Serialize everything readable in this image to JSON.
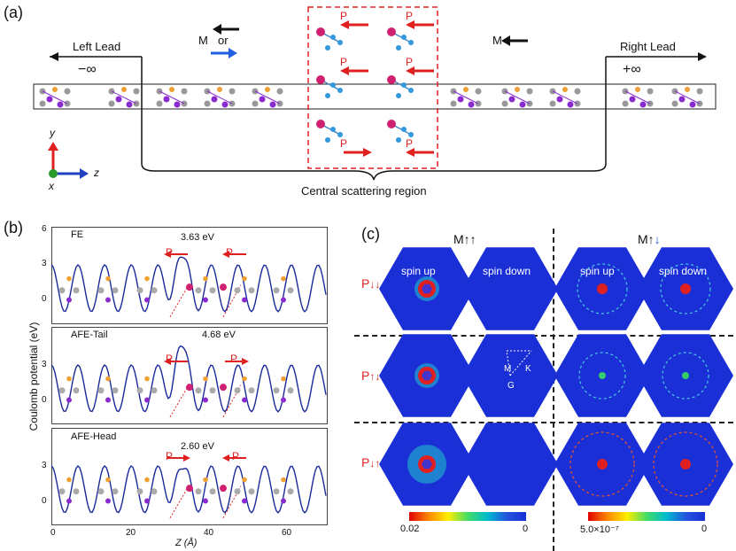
{
  "panel_a": {
    "label": "(a)",
    "left_lead": "Left Lead",
    "right_lead": "Right Lead",
    "minus_inf": "−∞",
    "plus_inf": "+∞",
    "m_or_left": "M",
    "m_or_text": "or",
    "m_right": "M",
    "p": "P",
    "central": "Central scattering region",
    "axis_y": "y",
    "axis_x": "x",
    "axis_z": "z"
  },
  "panel_b": {
    "label": "(b)",
    "ylabel": "Coulomb potential (eV)",
    "xlabel": "Z (Å)",
    "p": "P",
    "subplots": [
      {
        "name": "FE",
        "barrier": "3.63 eV",
        "yticks": [
          "6",
          "3",
          "0"
        ]
      },
      {
        "name": "AFE-Tail",
        "barrier": "4.68 eV",
        "yticks": [
          "3",
          "0"
        ]
      },
      {
        "name": "AFE-Head",
        "barrier": "2.60 eV",
        "yticks": [
          "3",
          "0"
        ]
      }
    ],
    "xticks": [
      "0",
      "20",
      "40",
      "60"
    ]
  },
  "panel_c": {
    "label": "(c)",
    "m_parallel": "M",
    "m_anti": "M",
    "spin_up": "spin up",
    "spin_down": "spin down",
    "p": "P",
    "bz_m": "M",
    "bz_k": "K",
    "bz_g": "G",
    "cbar1_min": "0.02",
    "cbar1_max": "0",
    "cbar2_min": "5.0×10⁻⁷",
    "cbar2_max": "0"
  },
  "colors": {
    "hex_bg": "#1a2fd6",
    "arrow_red": "#e02020",
    "arrow_blue": "#2060e0",
    "curve": "#1a2a9a"
  },
  "chart_data": [
    {
      "type": "line",
      "title": "FE",
      "ylabel": "Coulomb potential (eV)",
      "xlabel": "Z (Å)",
      "barrier_eV": 3.63,
      "xlim": [
        0,
        70
      ],
      "ylim": [
        -1,
        6
      ]
    },
    {
      "type": "line",
      "title": "AFE-Tail",
      "ylabel": "Coulomb potential (eV)",
      "xlabel": "Z (Å)",
      "barrier_eV": 4.68,
      "xlim": [
        0,
        70
      ],
      "ylim": [
        -1,
        6
      ]
    },
    {
      "type": "line",
      "title": "AFE-Head",
      "ylabel": "Coulomb potential (eV)",
      "xlabel": "Z (Å)",
      "barrier_eV": 2.6,
      "xlim": [
        0,
        70
      ],
      "ylim": [
        -1,
        6
      ]
    }
  ]
}
